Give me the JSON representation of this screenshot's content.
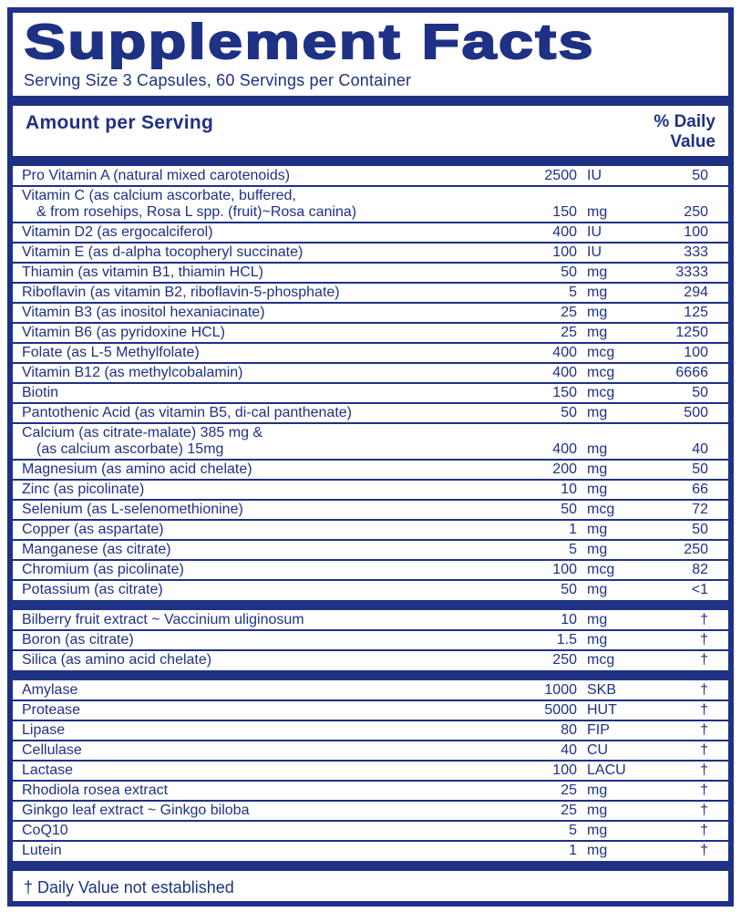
{
  "title": "Supplement Facts",
  "serving_info": "Serving Size  3 Capsules, 60 Servings per Container",
  "header": {
    "amount_label": "Amount per Serving",
    "dv_label_line1": "% Daily",
    "dv_label_line2": "Value"
  },
  "footnote": "†  Daily Value not established",
  "colors": {
    "navy": "#1e3185",
    "background": "#ffffff"
  },
  "sections": [
    {
      "name": "vitamins-minerals",
      "rows": [
        {
          "name_lines": [
            "Pro Vitamin A (natural mixed carotenoids)"
          ],
          "amount": "2500",
          "unit": "IU",
          "dv": "50"
        },
        {
          "name_lines": [
            "Vitamin C (as calcium ascorbate, buffered,",
            "& from rosehips, Rosa L spp. (fruit)~Rosa canina)"
          ],
          "amount": "150",
          "unit": "mg",
          "dv": "250"
        },
        {
          "name_lines": [
            "Vitamin D2 (as ergocalciferol)"
          ],
          "amount": "400",
          "unit": "IU",
          "dv": "100"
        },
        {
          "name_lines": [
            "Vitamin E (as d-alpha tocopheryl succinate)"
          ],
          "amount": "100",
          "unit": "IU",
          "dv": "333"
        },
        {
          "name_lines": [
            "Thiamin (as vitamin B1, thiamin HCL)"
          ],
          "amount": "50",
          "unit": "mg",
          "dv": "3333"
        },
        {
          "name_lines": [
            "Riboflavin (as vitamin B2, riboflavin-5-phosphate)"
          ],
          "amount": "5",
          "unit": "mg",
          "dv": "294"
        },
        {
          "name_lines": [
            "Vitamin B3 (as inositol hexaniacinate)"
          ],
          "amount": "25",
          "unit": "mg",
          "dv": "125"
        },
        {
          "name_lines": [
            "Vitamin B6 (as pyridoxine HCL)"
          ],
          "amount": "25",
          "unit": "mg",
          "dv": "1250"
        },
        {
          "name_lines": [
            "Folate (as L-5 Methylfolate)"
          ],
          "amount": "400",
          "unit": "mcg",
          "dv": "100"
        },
        {
          "name_lines": [
            "Vitamin B12 (as methylcobalamin)"
          ],
          "amount": "400",
          "unit": "mcg",
          "dv": "6666"
        },
        {
          "name_lines": [
            "Biotin"
          ],
          "amount": "150",
          "unit": "mcg",
          "dv": "50"
        },
        {
          "name_lines": [
            "Pantothenic Acid (as vitamin B5, di-cal panthenate)"
          ],
          "amount": "50",
          "unit": "mg",
          "dv": "500"
        },
        {
          "name_lines": [
            "Calcium (as citrate-malate) 385 mg &",
            "(as calcium ascorbate) 15mg"
          ],
          "amount": "400",
          "unit": "mg",
          "dv": "40"
        },
        {
          "name_lines": [
            "Magnesium (as amino acid chelate)"
          ],
          "amount": "200",
          "unit": "mg",
          "dv": "50"
        },
        {
          "name_lines": [
            "Zinc (as picolinate)"
          ],
          "amount": "10",
          "unit": "mg",
          "dv": "66"
        },
        {
          "name_lines": [
            "Selenium (as L-selenomethionine)"
          ],
          "amount": "50",
          "unit": "mcg",
          "dv": "72"
        },
        {
          "name_lines": [
            "Copper (as aspartate)"
          ],
          "amount": "1",
          "unit": "mg",
          "dv": "50"
        },
        {
          "name_lines": [
            "Manganese (as citrate)"
          ],
          "amount": "5",
          "unit": "mg",
          "dv": "250"
        },
        {
          "name_lines": [
            "Chromium (as picolinate)"
          ],
          "amount": "100",
          "unit": "mcg",
          "dv": "82"
        },
        {
          "name_lines": [
            "Potassium (as citrate)"
          ],
          "amount": "50",
          "unit": "mg",
          "dv": "<1"
        }
      ]
    },
    {
      "name": "botanicals",
      "rows": [
        {
          "name_lines": [
            "Bilberry fruit extract ~ Vaccinium uliginosum"
          ],
          "amount": "10",
          "unit": "mg",
          "dv": "†"
        },
        {
          "name_lines": [
            "Boron (as citrate)"
          ],
          "amount": "1.5",
          "unit": "mg",
          "dv": "†"
        },
        {
          "name_lines": [
            "Silica (as amino acid chelate)"
          ],
          "amount": "250",
          "unit": "mcg",
          "dv": "†"
        }
      ]
    },
    {
      "name": "enzymes-others",
      "rows": [
        {
          "name_lines": [
            "Amylase"
          ],
          "amount": "1000",
          "unit": "SKB",
          "dv": "†"
        },
        {
          "name_lines": [
            "Protease"
          ],
          "amount": "5000",
          "unit": "HUT",
          "dv": "†"
        },
        {
          "name_lines": [
            "Lipase"
          ],
          "amount": "80",
          "unit": "FIP",
          "dv": "†"
        },
        {
          "name_lines": [
            "Cellulase"
          ],
          "amount": "40",
          "unit": "CU",
          "dv": "†"
        },
        {
          "name_lines": [
            "Lactase"
          ],
          "amount": "100",
          "unit": "LACU",
          "dv": "†"
        },
        {
          "name_lines": [
            "Rhodiola rosea extract"
          ],
          "amount": "25",
          "unit": "mg",
          "dv": "†"
        },
        {
          "name_lines": [
            "Ginkgo leaf extract ~ Ginkgo biloba"
          ],
          "amount": "25",
          "unit": "mg",
          "dv": "†"
        },
        {
          "name_lines": [
            "CoQ10"
          ],
          "amount": "5",
          "unit": "mg",
          "dv": "†"
        },
        {
          "name_lines": [
            "Lutein"
          ],
          "amount": "1",
          "unit": "mg",
          "dv": "†"
        }
      ]
    }
  ]
}
